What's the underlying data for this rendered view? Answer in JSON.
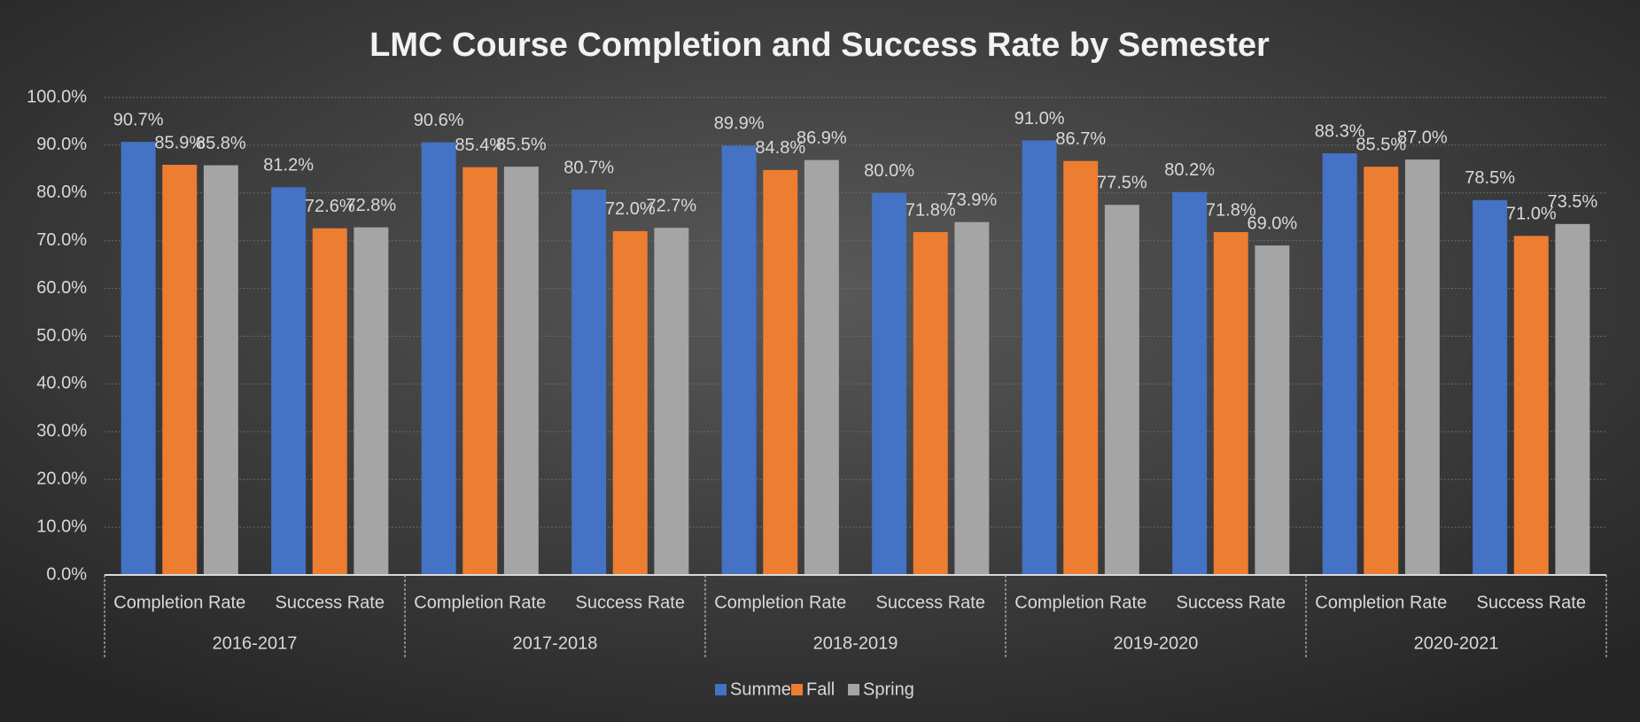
{
  "chart_data": {
    "type": "bar",
    "title": "LMC Course Completion and Success Rate by Semester",
    "categories": [
      "Completion Rate",
      "Success Rate",
      "Completion Rate",
      "Success Rate",
      "Completion Rate",
      "Success Rate",
      "Completion Rate",
      "Success Rate",
      "Completion Rate",
      "Success Rate"
    ],
    "groups": [
      "2016-2017",
      "2017-2018",
      "2018-2019",
      "2019-2020",
      "2020-2021"
    ],
    "series": [
      {
        "name": "Summer",
        "color": "#4472c4",
        "values": [
          90.7,
          81.2,
          90.6,
          80.7,
          89.9,
          80.0,
          91.0,
          80.2,
          88.3,
          78.5
        ],
        "value_labels": [
          "90.7%",
          "81.2%",
          "90.6%",
          "80.7%",
          "89.9%",
          "80.0%",
          "91.0%",
          "80.2%",
          "88.3%",
          "78.5%"
        ]
      },
      {
        "name": "Fall",
        "color": "#ed7d31",
        "values": [
          85.9,
          72.6,
          85.4,
          72.0,
          84.8,
          71.8,
          86.7,
          71.8,
          85.5,
          71.0
        ],
        "value_labels": [
          "85.9%",
          "72.6%",
          "85.4%",
          "72.0%",
          "84.8%",
          "71.8%",
          "86.7%",
          "71.8%",
          "85.5%",
          "71.0%"
        ]
      },
      {
        "name": "Spring",
        "color": "#a5a5a5",
        "values": [
          85.8,
          72.8,
          85.5,
          72.7,
          86.9,
          73.9,
          77.5,
          69.0,
          87.0,
          73.5
        ],
        "value_labels": [
          "85.8%",
          "72.8%",
          "85.5%",
          "72.7%",
          "86.9%",
          "73.9%",
          "77.5%",
          "69.0%",
          "87.0%",
          "73.5%"
        ]
      }
    ],
    "ylim": [
      0,
      100
    ],
    "yticks": [
      {
        "value": 0,
        "label": "0.0%"
      },
      {
        "value": 10,
        "label": "10.0%"
      },
      {
        "value": 20,
        "label": "20.0%"
      },
      {
        "value": 30,
        "label": "30.0%"
      },
      {
        "value": 40,
        "label": "40.0%"
      },
      {
        "value": 50,
        "label": "50.0%"
      },
      {
        "value": 60,
        "label": "60.0%"
      },
      {
        "value": 70,
        "label": "70.0%"
      },
      {
        "value": 80,
        "label": "80.0%"
      },
      {
        "value": 90,
        "label": "90.0%"
      },
      {
        "value": 100,
        "label": "100.0%"
      }
    ],
    "grid": true,
    "legend": "bottom"
  }
}
